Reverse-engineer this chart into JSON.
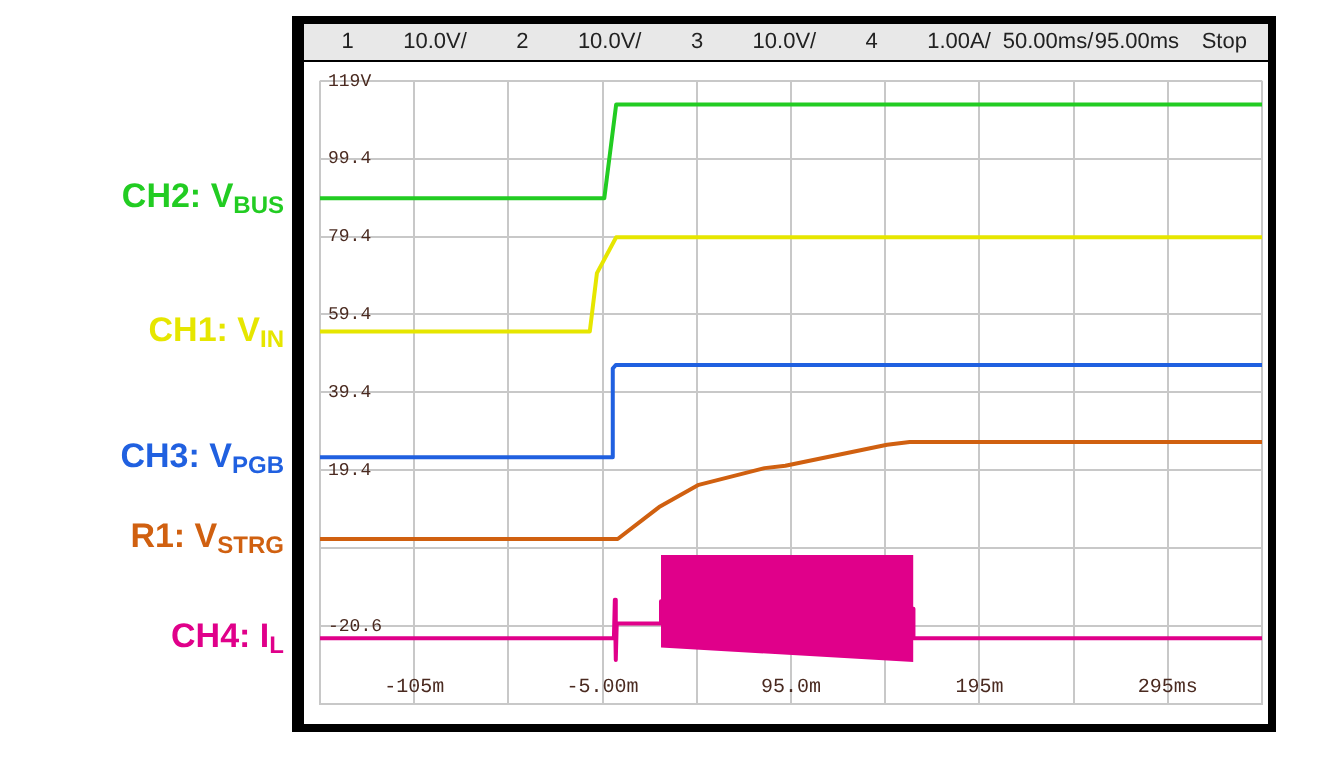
{
  "chart_data": {
    "type": "line",
    "annotations": [
      "1",
      "10.0V/",
      "2",
      "10.0V/",
      "3",
      "10.0V/",
      "4",
      "1.00A/",
      "50.00ms/",
      "95.00ms",
      "Stop"
    ],
    "xlim": [
      -155,
      345
    ],
    "xticks": [
      {
        "value": -155,
        "label": null
      },
      {
        "value": -105,
        "label": "-105m"
      },
      {
        "value": -55,
        "label": null
      },
      {
        "value": -5,
        "label": "-5.00m"
      },
      {
        "value": 45,
        "label": null
      },
      {
        "value": 95,
        "label": "95.0m"
      },
      {
        "value": 145,
        "label": null
      },
      {
        "value": 195,
        "label": "195m"
      },
      {
        "value": 245,
        "label": null
      },
      {
        "value": 295,
        "label": "295ms"
      },
      {
        "value": 345,
        "label": null
      }
    ],
    "ylim": [
      -41,
      119.4
    ],
    "yticks": [
      {
        "value": 119.4,
        "label": "119V"
      },
      99.4,
      79.4,
      59.4,
      39.4,
      19.4,
      {
        "value": -0.6,
        "label": null
      },
      -20.6,
      {
        "value": -40.6,
        "label": null
      }
    ],
    "grid": true,
    "legend": "left",
    "marker": "none",
    "line_style": "solid",
    "series": [
      {
        "name": "CH2: V$_{BUS}$",
        "color": "#22cc22",
        "x": [
          -155,
          -4.1,
          2.2,
          345
        ],
        "values": [
          89.2,
          89.2,
          113.3,
          113.3
        ]
      },
      {
        "name": "CH1: V$_{IN}$",
        "color": "#e6e600",
        "x": [
          -155,
          -11.8,
          -8,
          2.2,
          345
        ],
        "values": [
          55.0,
          55.0,
          70,
          79.2,
          79.2
        ]
      },
      {
        "name": "CH3: V$_{PGB}$",
        "color": "#2060e0",
        "x": [
          -155,
          0.4,
          0.4,
          2,
          345
        ],
        "values": [
          22.7,
          22.7,
          45.5,
          46.4,
          46.4
        ]
      },
      {
        "name": "R1: V$_{STRG}$",
        "color": "#d06010",
        "x": [
          -155,
          3,
          25,
          46,
          81,
          92,
          146,
          158,
          345
        ],
        "values": [
          1.7,
          1.7,
          9.9,
          15.6,
          19.9,
          20.5,
          25.9,
          26.6,
          26.6
        ]
      },
      {
        "name": "CH4: I$_{L}$",
        "color": "#e0008a",
        "x": [
          -155,
          1,
          1.5,
          2,
          2.5,
          26,
          26,
          160,
          160,
          345
        ],
        "values": [
          -23.8,
          -23.8,
          -13.9,
          -29.4,
          -20.0,
          -20.0,
          -14.3,
          -16.2,
          -23.8,
          -23.8
        ],
        "lower": [
          null,
          null,
          null,
          null,
          null,
          null,
          -26.2,
          -29.9,
          null,
          null
        ],
        "upper": [
          null,
          null,
          null,
          null,
          null,
          null,
          -2.4,
          -2.4,
          null,
          null
        ]
      }
    ]
  }
}
